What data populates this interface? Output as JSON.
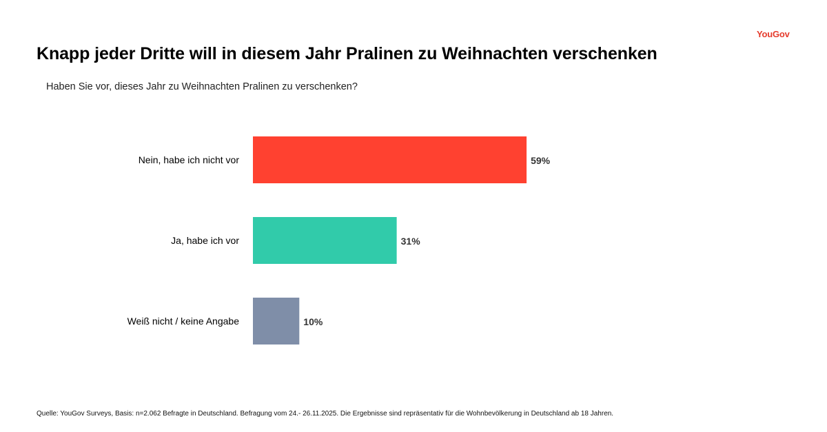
{
  "brand": {
    "logo_text": "YouGov",
    "color": "#e53b2c"
  },
  "header": {
    "title": "Knapp jeder Dritte will in diesem Jahr Pralinen zu Weihnachten verschenken",
    "subtitle": "Haben Sie vor, dieses Jahr zu Weihnachten Pralinen zu verschenken?"
  },
  "footer": {
    "source": "Quelle: YouGov Surveys, Basis: n=2.062 Befragte in Deutschland. Befragung vom 24.- 26.11.2025. Die Ergebnisse sind repräsentativ für die Wohnbevölkerung in Deutschland ab 18 Jahren."
  },
  "chart_data": {
    "type": "bar",
    "orientation": "horizontal",
    "title": "Knapp jeder Dritte will in diesem Jahr Pralinen zu Weihnachten verschenken",
    "subtitle": "Haben Sie vor, dieses Jahr zu Weihnachten Pralinen zu verschenken?",
    "categories": [
      "Nein, habe ich nicht vor",
      "Ja, habe ich vor",
      "Weiß nicht / keine Angabe"
    ],
    "values": [
      59,
      31,
      10
    ],
    "value_labels": [
      "59%",
      "31%",
      "10%"
    ],
    "colors": [
      "#ff4130",
      "#31cbaa",
      "#7f8ea8"
    ],
    "unit": "%",
    "xlabel": "",
    "ylabel": "",
    "xlim": [
      0,
      100
    ],
    "grid": false,
    "legend": "none"
  }
}
